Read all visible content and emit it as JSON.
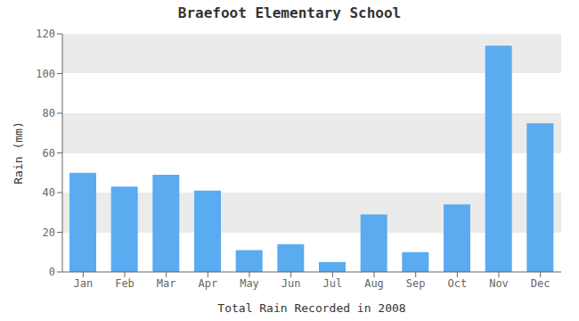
{
  "chart_data": {
    "type": "bar",
    "title": "Braefoot Elementary School",
    "xlabel": "Total Rain Recorded in 2008",
    "ylabel": "Rain (mm)",
    "categories": [
      "Jan",
      "Feb",
      "Mar",
      "Apr",
      "May",
      "Jun",
      "Jul",
      "Aug",
      "Sep",
      "Oct",
      "Nov",
      "Dec"
    ],
    "values": [
      50,
      43,
      49,
      41,
      11,
      14,
      5,
      29,
      10,
      34,
      114,
      75
    ],
    "color": "#5aabf0",
    "ylim": [
      0,
      120
    ],
    "yticks": [
      0,
      20,
      40,
      60,
      80,
      100,
      120
    ],
    "grid": true
  }
}
